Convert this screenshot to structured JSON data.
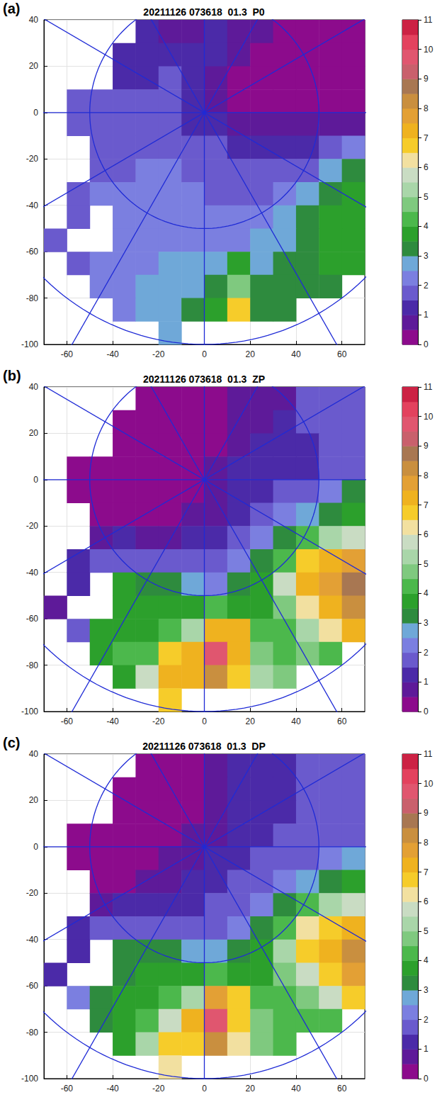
{
  "chart_data": [
    {
      "type": "heatmap",
      "panel_label": "(a)",
      "title": "20211126 073618  01.3  P0",
      "xlim": [
        -70,
        70
      ],
      "xticks": [
        -60,
        -40,
        -20,
        0,
        20,
        40,
        60
      ],
      "ylim": [
        -100,
        40
      ],
      "yticks": [
        -100,
        -80,
        -60,
        -40,
        -20,
        0,
        20,
        40
      ],
      "grid": true,
      "range_rings": [
        50,
        100
      ],
      "radials_deg": [
        0,
        30,
        60,
        90,
        120,
        150
      ],
      "x": [
        -65,
        -55,
        -45,
        -35,
        -25,
        -15,
        -5,
        5,
        15,
        25,
        35,
        45,
        55,
        65
      ],
      "y": [
        35,
        25,
        15,
        5,
        -5,
        -15,
        -25,
        -35,
        -45,
        -55,
        -65,
        -75,
        -85,
        -95
      ],
      "values": [
        [
          null,
          null,
          null,
          null,
          1.0,
          0.8,
          0.8,
          1.0,
          0.8,
          0.5,
          0.3,
          0.3,
          0.3,
          0.3
        ],
        [
          null,
          null,
          null,
          1.0,
          1.2,
          1.0,
          1.0,
          1.0,
          0.5,
          0.3,
          0.3,
          0.3,
          0.3,
          0.3
        ],
        [
          null,
          null,
          null,
          1.2,
          1.2,
          1.5,
          1.0,
          0.8,
          0.3,
          0.3,
          0.3,
          0.3,
          0.3,
          0.3
        ],
        [
          null,
          1.5,
          1.5,
          1.5,
          1.5,
          1.5,
          1.0,
          0.5,
          0.3,
          0.3,
          0.3,
          0.3,
          0.3,
          0.3
        ],
        [
          null,
          1.5,
          1.5,
          1.5,
          1.8,
          1.5,
          1.2,
          1.0,
          0.5,
          0.5,
          0.5,
          0.5,
          0.5,
          0.8
        ],
        [
          null,
          null,
          1.5,
          1.8,
          1.8,
          1.8,
          1.5,
          1.5,
          1.2,
          1.0,
          1.0,
          1.2,
          1.5,
          2.0
        ],
        [
          null,
          null,
          1.5,
          1.8,
          2.0,
          2.0,
          1.8,
          1.5,
          1.5,
          1.5,
          1.5,
          1.8,
          2.5,
          3.0
        ],
        [
          null,
          1.5,
          2.0,
          2.0,
          2.0,
          2.0,
          2.0,
          1.8,
          1.8,
          1.8,
          2.0,
          2.5,
          3.0,
          3.5
        ],
        [
          null,
          1.5,
          null,
          2.0,
          2.0,
          2.0,
          2.0,
          2.0,
          2.0,
          2.2,
          2.5,
          3.0,
          3.5,
          3.5
        ],
        [
          1.5,
          null,
          null,
          2.0,
          2.0,
          2.2,
          2.2,
          2.2,
          2.2,
          2.5,
          2.8,
          3.0,
          3.5,
          3.8
        ],
        [
          null,
          1.5,
          2.0,
          2.0,
          2.2,
          2.5,
          2.5,
          2.5,
          3.5,
          2.8,
          3.0,
          3.2,
          3.5,
          3.5
        ],
        [
          null,
          null,
          2.0,
          2.2,
          2.5,
          2.5,
          2.8,
          3.0,
          4.5,
          3.0,
          3.0,
          3.2,
          3.2,
          null
        ],
        [
          null,
          null,
          null,
          2.2,
          2.5,
          2.8,
          3.0,
          3.5,
          6.5,
          3.0,
          3.0,
          null,
          null,
          null
        ],
        [
          null,
          null,
          null,
          null,
          null,
          2.5,
          null,
          null,
          null,
          null,
          null,
          null,
          null,
          null
        ]
      ],
      "colorbar": {
        "range": [
          0,
          11
        ],
        "ticks": [
          0,
          1,
          2,
          3,
          4,
          5,
          6,
          7,
          8,
          9,
          10,
          11
        ],
        "colors": [
          "#8c0b8c",
          "#5e1a99",
          "#4b2aa8",
          "#6a5acd",
          "#7b7fe0",
          "#6fa8d8",
          "#2e8b3e",
          "#2ca02c",
          "#4cb84c",
          "#7fc97f",
          "#a9d6a9",
          "#c9dcc3",
          "#f2e0a0",
          "#f6cc2a",
          "#efb21f",
          "#e3a035",
          "#c98f3f",
          "#a87752",
          "#c9606c",
          "#e0566f",
          "#e3425e",
          "#cc2244"
        ]
      }
    },
    {
      "type": "heatmap",
      "panel_label": "(b)",
      "title": "20211126 073618  01.3  ZP",
      "xlim": [
        -70,
        70
      ],
      "xticks": [
        -60,
        -40,
        -20,
        0,
        20,
        40,
        60
      ],
      "ylim": [
        -100,
        40
      ],
      "yticks": [
        -100,
        -80,
        -60,
        -40,
        -20,
        0,
        20,
        40
      ],
      "grid": true,
      "range_rings": [
        50,
        100
      ],
      "radials_deg": [
        0,
        30,
        60,
        90,
        120,
        150
      ],
      "x": [
        -65,
        -55,
        -45,
        -35,
        -25,
        -15,
        -5,
        5,
        15,
        25,
        35,
        45,
        55,
        65
      ],
      "y": [
        35,
        25,
        15,
        5,
        -5,
        -15,
        -25,
        -35,
        -45,
        -55,
        -65,
        -75,
        -85,
        -95
      ],
      "values": [
        [
          null,
          null,
          null,
          null,
          0.3,
          0.3,
          0.2,
          0.3,
          0.5,
          0.5,
          0.8,
          1.5,
          1.5,
          1.8
        ],
        [
          null,
          null,
          null,
          0.2,
          0.2,
          0.2,
          0.2,
          0.3,
          0.5,
          0.8,
          1.0,
          1.5,
          1.5,
          1.8
        ],
        [
          null,
          null,
          null,
          0.2,
          0.2,
          0.2,
          0.2,
          0.3,
          0.8,
          1.0,
          1.2,
          1.3,
          1.5,
          1.8
        ],
        [
          null,
          0.3,
          0.2,
          0.2,
          0.2,
          0.2,
          0.3,
          0.5,
          1.0,
          1.0,
          1.2,
          1.3,
          1.5,
          1.5
        ],
        [
          null,
          0.3,
          0.2,
          0.2,
          0.2,
          0.3,
          0.3,
          0.8,
          1.0,
          1.3,
          1.5,
          1.8,
          2.0,
          3.0
        ],
        [
          null,
          null,
          0.2,
          0.2,
          0.3,
          0.3,
          0.5,
          0.8,
          1.2,
          1.5,
          2.0,
          2.5,
          3.0,
          3.5
        ],
        [
          null,
          null,
          0.8,
          1.0,
          0.8,
          0.8,
          1.0,
          1.2,
          1.5,
          2.0,
          3.0,
          4.0,
          5.0,
          5.5
        ],
        [
          null,
          1.2,
          1.5,
          1.5,
          1.5,
          1.5,
          1.5,
          1.5,
          2.0,
          3.0,
          4.0,
          6.5,
          7.0,
          7.5
        ],
        [
          null,
          1.0,
          null,
          3.5,
          3.0,
          3.0,
          2.5,
          2.0,
          3.0,
          3.5,
          5.5,
          7.0,
          7.5,
          8.5
        ],
        [
          0.8,
          null,
          null,
          3.5,
          3.5,
          3.5,
          3.5,
          4.0,
          3.5,
          3.5,
          4.5,
          6.0,
          7.0,
          8.0
        ],
        [
          null,
          1.5,
          3.5,
          3.5,
          3.5,
          4.0,
          5.0,
          7.0,
          7.0,
          4.0,
          4.0,
          5.0,
          6.0,
          7.0
        ],
        [
          null,
          null,
          3.5,
          4.0,
          4.0,
          6.5,
          7.0,
          9.5,
          7.0,
          4.5,
          4.0,
          4.5,
          4.0,
          null
        ],
        [
          null,
          null,
          null,
          3.5,
          5.5,
          7.0,
          7.0,
          8.0,
          6.5,
          5.0,
          4.5,
          null,
          null,
          null
        ],
        [
          null,
          null,
          null,
          null,
          null,
          6.5,
          null,
          null,
          null,
          null,
          null,
          null,
          null,
          null
        ]
      ],
      "colorbar": {
        "range": [
          0,
          11
        ],
        "ticks": [
          0,
          1,
          2,
          3,
          4,
          5,
          6,
          7,
          8,
          9,
          10,
          11
        ],
        "colors": [
          "#8c0b8c",
          "#5e1a99",
          "#4b2aa8",
          "#6a5acd",
          "#7b7fe0",
          "#6fa8d8",
          "#2e8b3e",
          "#2ca02c",
          "#4cb84c",
          "#7fc97f",
          "#a9d6a9",
          "#c9dcc3",
          "#f2e0a0",
          "#f6cc2a",
          "#efb21f",
          "#e3a035",
          "#c98f3f",
          "#a87752",
          "#c9606c",
          "#e0566f",
          "#e3425e",
          "#cc2244"
        ]
      }
    },
    {
      "type": "heatmap",
      "panel_label": "(c)",
      "title": "20211126 073618  01.3  DP",
      "xlim": [
        -70,
        70
      ],
      "xticks": [
        -60,
        -40,
        -20,
        0,
        20,
        40,
        60
      ],
      "ylim": [
        -100,
        40
      ],
      "yticks": [
        -100,
        -80,
        -60,
        -40,
        -20,
        0,
        20,
        40
      ],
      "grid": true,
      "range_rings": [
        50,
        100
      ],
      "radials_deg": [
        0,
        30,
        60,
        90,
        120,
        150
      ],
      "x": [
        -65,
        -55,
        -45,
        -35,
        -25,
        -15,
        -5,
        5,
        15,
        25,
        35,
        45,
        55,
        65
      ],
      "y": [
        35,
        25,
        15,
        5,
        -5,
        -15,
        -25,
        -35,
        -45,
        -55,
        -65,
        -75,
        -85,
        -95
      ],
      "values": [
        [
          null,
          null,
          null,
          null,
          0.2,
          0.2,
          0.2,
          0.5,
          1.0,
          1.0,
          1.2,
          1.5,
          1.5,
          1.5
        ],
        [
          null,
          null,
          null,
          0.2,
          0.2,
          0.2,
          0.2,
          0.5,
          1.0,
          1.2,
          1.2,
          1.5,
          1.5,
          1.5
        ],
        [
          null,
          null,
          null,
          0.2,
          0.2,
          0.2,
          0.2,
          0.5,
          1.0,
          1.2,
          1.3,
          1.5,
          1.5,
          1.5
        ],
        [
          null,
          0.3,
          0.2,
          0.2,
          0.2,
          0.3,
          0.5,
          0.8,
          1.2,
          1.3,
          1.5,
          1.5,
          1.5,
          1.5
        ],
        [
          null,
          0.3,
          0.2,
          0.3,
          0.3,
          0.5,
          0.8,
          1.0,
          1.2,
          1.5,
          1.5,
          1.8,
          2.0,
          2.5
        ],
        [
          null,
          null,
          0.3,
          0.3,
          0.5,
          0.8,
          1.0,
          1.2,
          1.5,
          1.8,
          2.0,
          2.5,
          3.0,
          3.5
        ],
        [
          null,
          null,
          0.8,
          1.0,
          1.0,
          1.2,
          1.2,
          1.5,
          1.8,
          2.0,
          3.0,
          4.0,
          5.0,
          5.5
        ],
        [
          null,
          1.0,
          1.5,
          1.8,
          1.8,
          1.8,
          1.8,
          1.8,
          2.0,
          3.0,
          4.0,
          6.0,
          6.5,
          7.0
        ],
        [
          null,
          1.0,
          null,
          3.0,
          3.0,
          3.0,
          2.5,
          2.5,
          3.0,
          3.5,
          5.0,
          6.5,
          7.0,
          8.0
        ],
        [
          1.0,
          null,
          null,
          3.0,
          3.5,
          3.5,
          3.5,
          4.0,
          3.5,
          3.5,
          4.5,
          5.5,
          6.5,
          7.5
        ],
        [
          null,
          2.0,
          3.0,
          3.5,
          3.5,
          4.0,
          5.0,
          7.5,
          6.5,
          4.0,
          4.0,
          4.5,
          5.5,
          6.5
        ],
        [
          null,
          null,
          3.0,
          3.5,
          4.0,
          5.5,
          7.0,
          9.5,
          6.5,
          4.5,
          4.0,
          4.0,
          4.0,
          null
        ],
        [
          null,
          null,
          null,
          3.5,
          5.0,
          6.5,
          6.5,
          8.0,
          6.0,
          4.5,
          4.0,
          null,
          null,
          null
        ],
        [
          null,
          null,
          null,
          null,
          null,
          6.0,
          null,
          null,
          null,
          null,
          null,
          null,
          null,
          null
        ]
      ],
      "colorbar": {
        "range": [
          0,
          11
        ],
        "ticks": [
          0,
          1,
          2,
          3,
          4,
          5,
          6,
          7,
          8,
          9,
          10,
          11
        ],
        "colors": [
          "#8c0b8c",
          "#5e1a99",
          "#4b2aa8",
          "#6a5acd",
          "#7b7fe0",
          "#6fa8d8",
          "#2e8b3e",
          "#2ca02c",
          "#4cb84c",
          "#7fc97f",
          "#a9d6a9",
          "#c9dcc3",
          "#f2e0a0",
          "#f6cc2a",
          "#efb21f",
          "#e3a035",
          "#c98f3f",
          "#a87752",
          "#c9606c",
          "#e0566f",
          "#e3425e",
          "#cc2244"
        ]
      }
    }
  ]
}
